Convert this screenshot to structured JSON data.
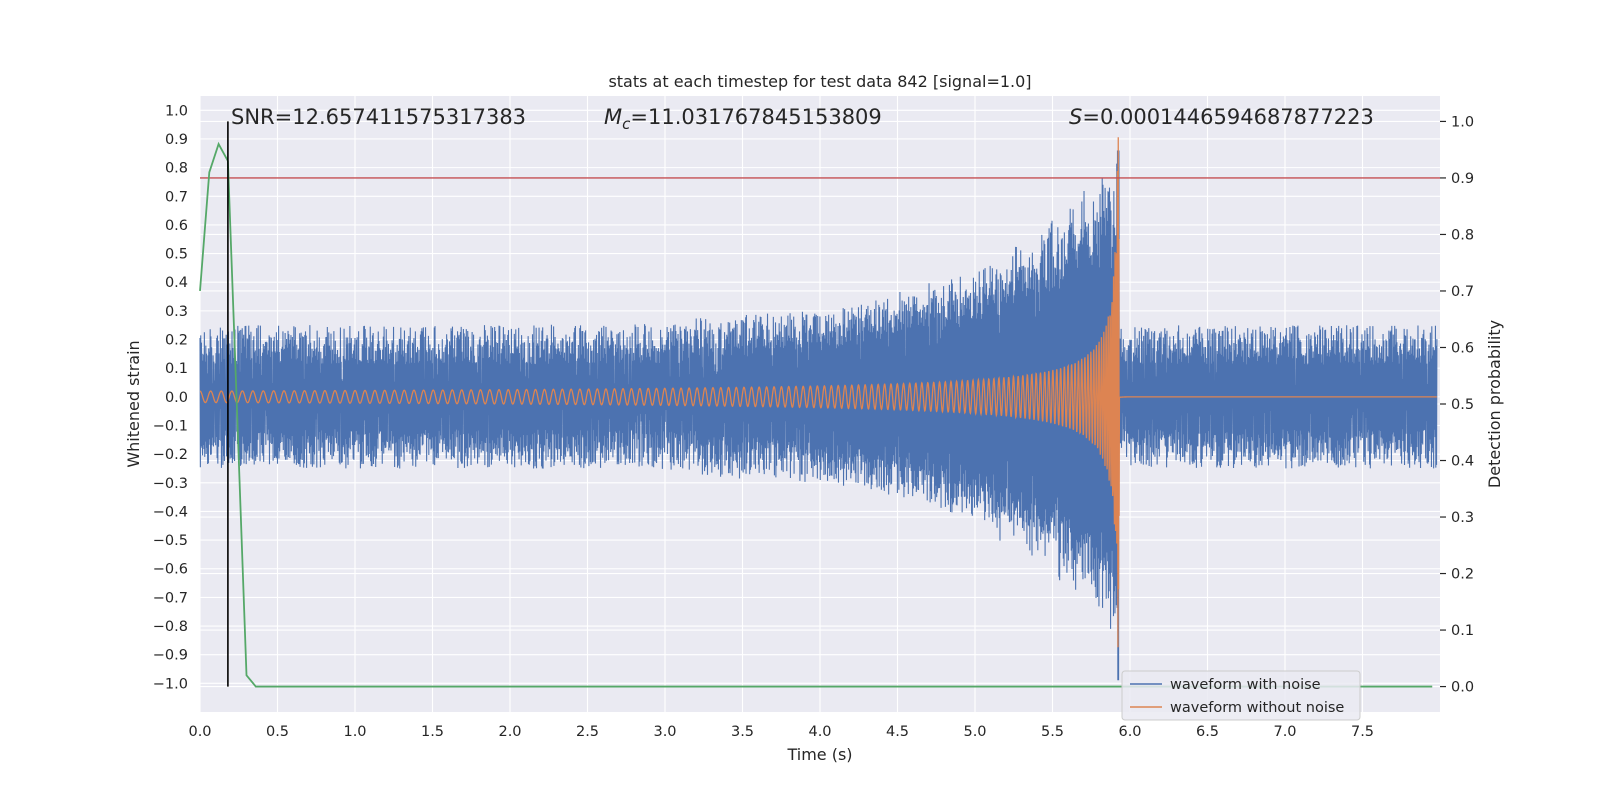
{
  "chart_data": {
    "type": "line",
    "title": "stats at each timestep for test data 842 [signal=1.0]",
    "xlabel": "Time (s)",
    "ylabel_left": "Whitened strain",
    "ylabel_right": "Detection probability",
    "xlim": [
      0.0,
      8.0
    ],
    "ylim_left": [
      -1.1,
      1.05
    ],
    "ylim_right": [
      -0.045,
      1.045
    ],
    "x_ticks": [
      "0.0",
      "0.5",
      "1.0",
      "1.5",
      "2.0",
      "2.5",
      "3.0",
      "3.5",
      "4.0",
      "4.5",
      "5.0",
      "5.5",
      "6.0",
      "6.5",
      "7.0",
      "7.5"
    ],
    "y_left_ticks": [
      "1.0",
      "0.9",
      "0.8",
      "0.7",
      "0.6",
      "0.5",
      "0.4",
      "0.3",
      "0.2",
      "0.1",
      "0.0",
      "−0.1",
      "−0.2",
      "−0.3",
      "−0.4",
      "−0.5",
      "−0.6",
      "−0.7",
      "−0.8",
      "−0.9",
      "−1.0"
    ],
    "y_right_ticks": [
      "1.0",
      "0.9",
      "0.8",
      "0.7",
      "0.6",
      "0.5",
      "0.4",
      "0.3",
      "0.2",
      "0.1",
      "0.0"
    ],
    "annotations": {
      "snr": "SNR=12.657411575317383",
      "mc_symbol": "M",
      "mc_sub": "c",
      "mc_value": "=11.031767845153809",
      "s_symbol": "S",
      "s_value": "=0.0001446594687877223"
    },
    "threshold": {
      "value": 0.9,
      "color": "#c44e52"
    },
    "detection_time": {
      "value": 0.18,
      "color": "#000000"
    },
    "series": [
      {
        "name": "waveform with noise",
        "color": "#4c72b0",
        "axis": "left",
        "noise_amplitude": 0.25,
        "peak_amplitude": 0.86,
        "merger_time": 5.93
      },
      {
        "name": "waveform without noise",
        "color": "#dd8452",
        "axis": "left",
        "start_amplitude": 0.02,
        "peak_amplitude": 0.97,
        "merger_time": 5.93
      },
      {
        "name": "Detection probability",
        "color": "#55a868",
        "axis": "right",
        "x": [
          0.0,
          0.06,
          0.12,
          0.18,
          0.24,
          0.3,
          0.36,
          0.42,
          1.0,
          2.0,
          3.0,
          4.0,
          5.0,
          6.0,
          7.0,
          7.95
        ],
        "values": [
          0.7,
          0.91,
          0.96,
          0.93,
          0.48,
          0.02,
          0.0,
          0.0,
          0.0,
          0.0,
          0.0,
          0.0,
          0.0,
          0.0,
          0.0,
          0.0
        ]
      }
    ],
    "legend": [
      "waveform with noise",
      "waveform without noise"
    ],
    "legend_location": "lower-right",
    "grid": true
  }
}
